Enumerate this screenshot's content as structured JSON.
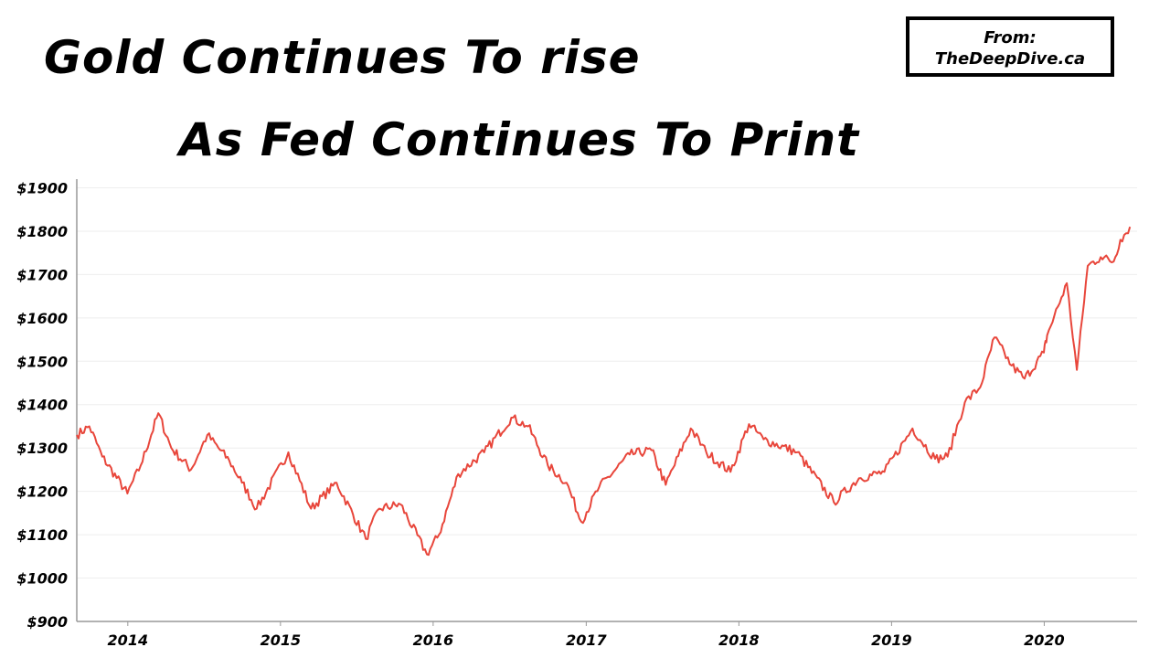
{
  "header": {
    "title_line_1": "Gold Continues To rise",
    "title_line_2": "As Fed Continues To Print"
  },
  "source_box": {
    "line_1": "From:",
    "line_2": "TheDeepDive.ca"
  },
  "colors": {
    "series": "#e8463b",
    "gridline": "#eeeeee",
    "axis": "#999999"
  },
  "chart_data": {
    "type": "line",
    "title": "Gold Continues To rise As Fed Continues To Print",
    "xlabel": "",
    "ylabel": "",
    "x_tick_labels": [
      "2014",
      "2015",
      "2016",
      "2017",
      "2018",
      "2019",
      "2020"
    ],
    "y_tick_labels": [
      "$900",
      "$1000",
      "$1100",
      "$1200",
      "$1300",
      "$1400",
      "$1500",
      "$1600",
      "$1700",
      "$1800",
      "$1900"
    ],
    "y_ticks": [
      900,
      1000,
      1100,
      1200,
      1300,
      1400,
      1500,
      1600,
      1700,
      1800,
      1900
    ],
    "ylim": [
      900,
      1920
    ],
    "xlim": [
      "2013-09-01",
      "2020-08-10"
    ],
    "grid": true,
    "series": [
      {
        "color": "#e8463b",
        "x": [
          "2013-09-01",
          "2013-10-01",
          "2013-11-01",
          "2013-12-31",
          "2014-02-01",
          "2014-03-15",
          "2014-04-15",
          "2014-06-01",
          "2014-07-10",
          "2014-09-01",
          "2014-10-01",
          "2014-11-05",
          "2015-01-20",
          "2015-03-15",
          "2015-05-15",
          "2015-07-24",
          "2015-08-25",
          "2015-10-15",
          "2015-12-17",
          "2016-01-15",
          "2016-03-01",
          "2016-05-02",
          "2016-07-06",
          "2016-08-15",
          "2016-10-01",
          "2016-11-15",
          "2016-12-20",
          "2017-02-01",
          "2017-04-15",
          "2017-06-06",
          "2017-07-10",
          "2017-09-08",
          "2017-10-15",
          "2017-12-12",
          "2018-01-25",
          "2018-03-01",
          "2018-05-20",
          "2018-08-16",
          "2018-10-15",
          "2018-12-15",
          "2019-02-20",
          "2019-04-15",
          "2019-05-15",
          "2019-06-25",
          "2019-08-01",
          "2019-09-04",
          "2019-10-15",
          "2019-11-15",
          "2019-12-31",
          "2020-01-08",
          "2020-02-24",
          "2020-03-19",
          "2020-04-14",
          "2020-05-15",
          "2020-06-15",
          "2020-07-01",
          "2020-07-24"
        ],
        "y": [
          1330,
          1350,
          1280,
          1195,
          1260,
          1380,
          1300,
          1250,
          1330,
          1270,
          1220,
          1160,
          1290,
          1160,
          1220,
          1090,
          1160,
          1170,
          1055,
          1100,
          1240,
          1290,
          1370,
          1350,
          1260,
          1220,
          1130,
          1210,
          1285,
          1295,
          1215,
          1345,
          1290,
          1245,
          1355,
          1320,
          1290,
          1175,
          1230,
          1245,
          1345,
          1275,
          1280,
          1405,
          1440,
          1555,
          1490,
          1460,
          1520,
          1560,
          1680,
          1480,
          1720,
          1740,
          1730,
          1780,
          1810
        ]
      }
    ]
  }
}
